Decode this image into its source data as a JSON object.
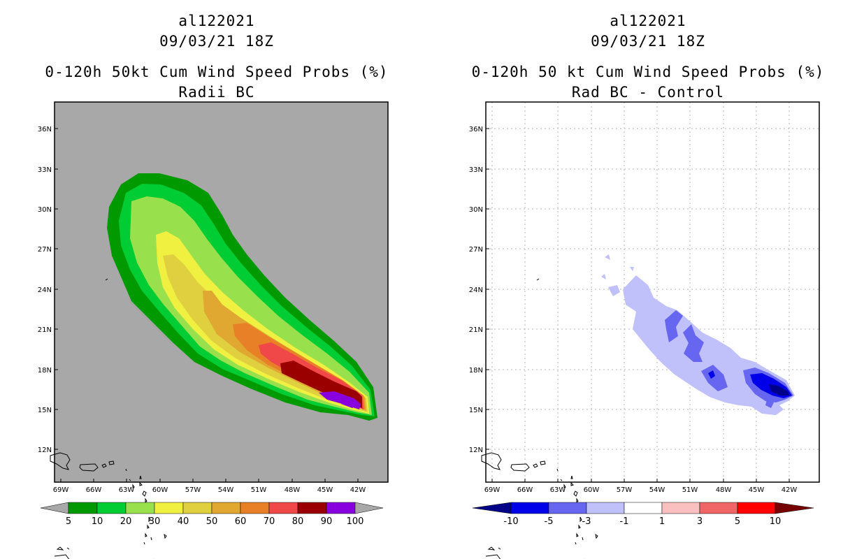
{
  "panels": [
    {
      "title_line1": "al122021",
      "title_line2": "09/03/21 18Z",
      "title_line3": "0-120h 50kt Cum Wind Speed Probs (%)",
      "title_line4": "Radii BC",
      "background_color": "#a8a8a8",
      "colorbar": {
        "colors": [
          "#009900",
          "#00cc33",
          "#99e04d",
          "#f0f040",
          "#e0d040",
          "#e0a830",
          "#e88028",
          "#f04848",
          "#9a0000",
          "#8800dd"
        ],
        "end_color": "#a8a8a8",
        "labels": [
          "5",
          "10",
          "20",
          "30",
          "40",
          "50",
          "60",
          "70",
          "80",
          "90",
          "100"
        ]
      }
    },
    {
      "title_line1": "al122021",
      "title_line2": "09/03/21 18Z",
      "title_line3": "0-120h 50 kt Cum Wind Speed Probs (%)",
      "title_line4": "Rad BC - Control",
      "background_color": "#ffffff",
      "colorbar": {
        "colors": [
          "#0000e8",
          "#6666f0",
          "#c0c0fa",
          "#ffffff",
          "#fac0c0",
          "#f06666",
          "#ff0000"
        ],
        "low_color": "#000088",
        "high_color": "#770000",
        "labels": [
          "-10",
          "-5",
          "-3",
          "-1",
          "1",
          "3",
          "5",
          "10"
        ]
      }
    }
  ],
  "map": {
    "lon_labels": [
      "69W",
      "66W",
      "63W",
      "60W",
      "57W",
      "54W",
      "51W",
      "48W",
      "45W",
      "42W"
    ],
    "lat_labels": [
      "12N",
      "15N",
      "18N",
      "21N",
      "24N",
      "27N",
      "30N",
      "33N",
      "36N"
    ]
  }
}
